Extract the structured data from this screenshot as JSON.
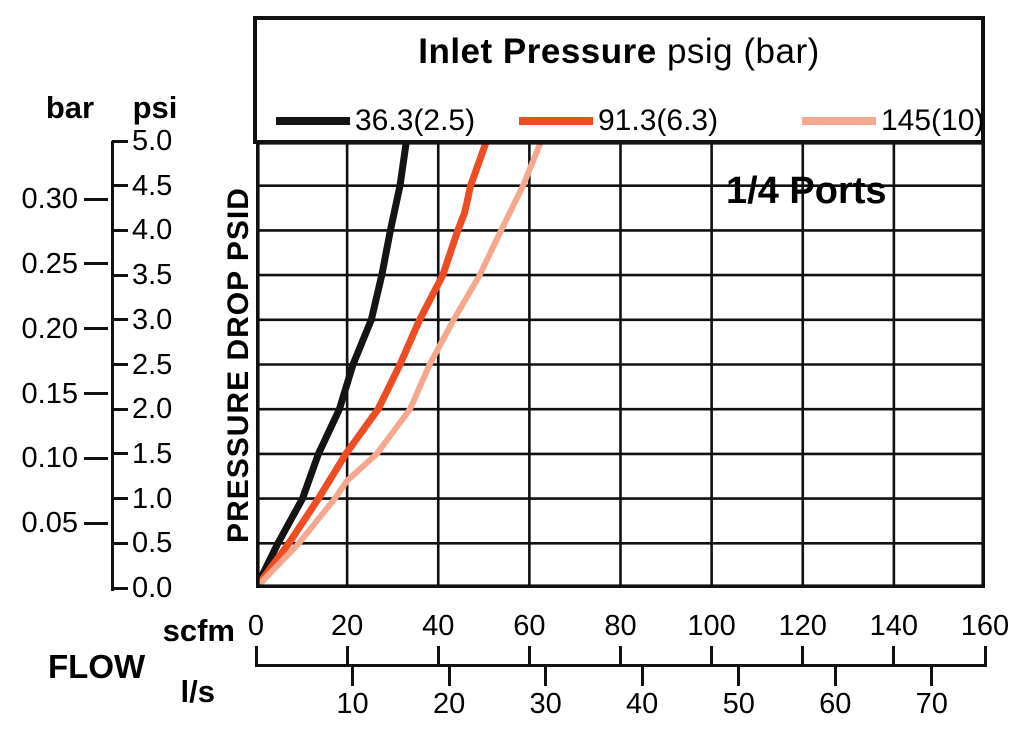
{
  "legend": {
    "title_bold": "Inlet Pressure",
    "title_rest": " psig (bar)",
    "entries": [
      {
        "label": "36.3(2.5)",
        "color": "#141414"
      },
      {
        "label": "91.3(6.3)",
        "color": "#ee4c22"
      },
      {
        "label": "145(10)",
        "color": "#f5a88f"
      }
    ]
  },
  "annotation": "1/4 Ports",
  "y_axis": {
    "title": "PRESSURE DROP PSID",
    "unit_left": "bar",
    "unit_right": "psi",
    "psi_ticks": [
      "0.0",
      "0.5",
      "1.0",
      "1.5",
      "2.0",
      "2.5",
      "3.0",
      "3.5",
      "4.0",
      "4.5",
      "5.0"
    ],
    "bar_ticks": [
      "0.05",
      "0.10",
      "0.15",
      "0.20",
      "0.25",
      "0.30"
    ]
  },
  "x_axis": {
    "title": "FLOW",
    "scfm_label": "scfm",
    "ls_label": "l/s",
    "scfm_ticks": [
      0,
      20,
      40,
      60,
      80,
      100,
      120,
      140,
      160
    ],
    "ls_ticks": [
      10,
      20,
      30,
      40,
      50,
      60,
      70
    ]
  },
  "chart_data": {
    "type": "line",
    "title": "Inlet Pressure psig (bar)",
    "annotation": "1/4 Ports",
    "xlabel": "FLOW",
    "ylabel": "PRESSURE DROP PSID",
    "x_scales": {
      "primary_unit": "scfm",
      "secondary_unit": "l/s",
      "scfm_per_ls": 2.11888
    },
    "y_scales": {
      "primary_unit": "psi",
      "secondary_unit": "bar",
      "psi_per_bar": 14.5038
    },
    "xlim_scfm": [
      0,
      160
    ],
    "ylim_psi": [
      0,
      5
    ],
    "grid": true,
    "grid_step_x_scfm": 20,
    "grid_step_y_psi": 0.5,
    "legend_position": "top",
    "series": [
      {
        "name": "36.3(2.5)",
        "color": "#141414",
        "width": 7,
        "points_scfm_psi": [
          [
            0,
            0
          ],
          [
            4.8,
            0.5
          ],
          [
            10.2,
            1.0
          ],
          [
            13.7,
            1.5
          ],
          [
            18.3,
            2.0
          ],
          [
            21.3,
            2.5
          ],
          [
            25.3,
            3.0
          ],
          [
            27.6,
            3.5
          ],
          [
            29.5,
            4.0
          ],
          [
            31.6,
            4.5
          ],
          [
            33.0,
            5.0
          ]
        ]
      },
      {
        "name": "91.3(6.3)",
        "color": "#ee4c22",
        "width": 7,
        "points_scfm_psi": [
          [
            0,
            0
          ],
          [
            7.2,
            0.5
          ],
          [
            13.7,
            1.0
          ],
          [
            19.7,
            1.5
          ],
          [
            26.8,
            2.0
          ],
          [
            31.6,
            2.5
          ],
          [
            35.9,
            3.0
          ],
          [
            41.0,
            3.5
          ],
          [
            44.3,
            4.0
          ],
          [
            45.8,
            4.2
          ],
          [
            47.1,
            4.5
          ],
          [
            50.6,
            5.0
          ]
        ]
      },
      {
        "name": "145(10)",
        "color": "#f5a88f",
        "width": 6,
        "points_scfm_psi": [
          [
            0,
            0
          ],
          [
            9.4,
            0.5
          ],
          [
            17.3,
            1.0
          ],
          [
            20.0,
            1.2
          ],
          [
            26.5,
            1.5
          ],
          [
            33.8,
            2.0
          ],
          [
            38.1,
            2.5
          ],
          [
            43.4,
            3.0
          ],
          [
            49.1,
            3.5
          ],
          [
            53.8,
            4.0
          ],
          [
            58.6,
            4.5
          ],
          [
            62.6,
            5.0
          ]
        ]
      }
    ]
  }
}
